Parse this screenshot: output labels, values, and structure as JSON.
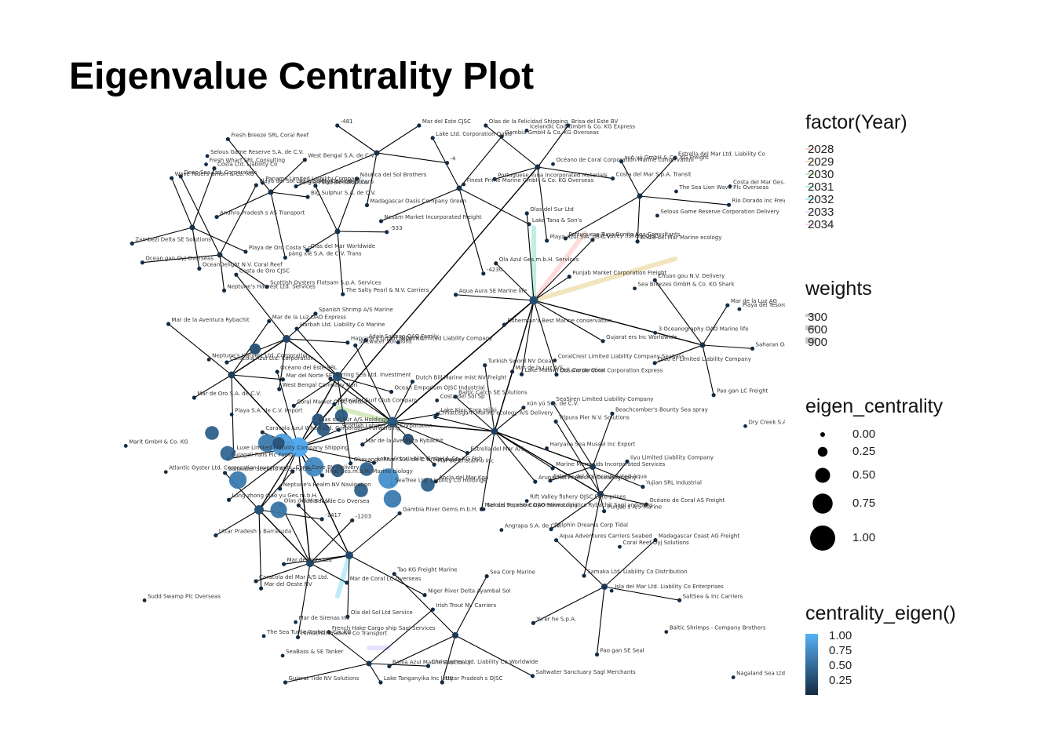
{
  "title": "Eigenvalue Centrality Plot",
  "legend": {
    "year": {
      "title": "factor(Year)",
      "items": [
        {
          "label": "2028",
          "color": "#f8766d"
        },
        {
          "label": "2029",
          "color": "#c49a00"
        },
        {
          "label": "2030",
          "color": "#53b400"
        },
        {
          "label": "2031",
          "color": "#00c094"
        },
        {
          "label": "2032",
          "color": "#00b6eb"
        },
        {
          "label": "2033",
          "color": "#a58aff"
        },
        {
          "label": "2034",
          "color": "#fb61d7"
        }
      ]
    },
    "weights": {
      "title": "weights",
      "items": [
        {
          "label": "300",
          "value": 300
        },
        {
          "label": "600",
          "value": 600
        },
        {
          "label": "900",
          "value": 900
        }
      ]
    },
    "eigen_centrality": {
      "title": "eigen_centrality",
      "items": [
        {
          "label": "0.00",
          "value": 0.0
        },
        {
          "label": "0.25",
          "value": 0.25
        },
        {
          "label": "0.50",
          "value": 0.5
        },
        {
          "label": "0.75",
          "value": 0.75
        },
        {
          "label": "1.00",
          "value": 1.0
        }
      ]
    },
    "centrality_color": {
      "title": "centrality_eigen()",
      "items": [
        {
          "label": "1.00",
          "value": 1.0
        },
        {
          "label": "0.75",
          "value": 0.75
        },
        {
          "label": "0.50",
          "value": 0.5
        },
        {
          "label": "0.25",
          "value": 0.25
        }
      ],
      "low_color": "#132b43",
      "high_color": "#56b1f7"
    }
  },
  "node_labels": [
    "Gujarat ers Inc Worldwide",
    "Océano de Coral Corporation Express",
    "Lake Malawi Ltd. Corporation",
    "Fisherman's Best Marine conservation",
    "Aqua Aura SE Marine life",
    "Ola Azul Ges.m.b.H. Services",
    "Olas del Sur Ltd",
    "Rift Valley fishery OJSC",
    "Punjab Market Corporation Freight",
    "Estrella del Mar A/S",
    "Mar de Cristalino Inc",
    "SeaTree Ltd. Liability Co Holdings",
    "Mar de la Aventura Rybachit",
    "Olas del Sur A/S Holdings",
    "Herring Sea Ltd. Investment",
    "Saltwater Solutions",
    "Dutch Bill Marine mist NV Freight",
    "Lake Kivu Corp Hijiki",
    "Lake Victoria Nile GmbH & Co. KG Fish",
    "Hhot Ges.m.b.H. Marine biology",
    "Neptune's Realm NV Navigation",
    "Long zhong diao yu Ges.m.b.H.",
    "Bujagali Falls Plc Family",
    "Caracola Azul Wharf Ltd. Corporation Forwarding",
    "Océano del Este SRL",
    "Saltwater Surf Club Company",
    "Scottish Lobster Ltd. Corporation",
    "Marine Mermaids Incorporated Services",
    "Arunachal Pradesh s Oceanography",
    "Mar del Paraíso Corporation Logistics Rybachit Sagl and Sons",
    "Ancla del Mar Kga",
    "Chhattisgarh Marine ecology A/S Delivery",
    "Baltic Catch SE Solutions",
    "Turkish Sword NV Ocean",
    "Mar de la Luz A/S",
    "xún yú S.A. de C.V.",
    "Ocean Emporium OJSC Industrial",
    "Okavango River S.A. de C.V. Worldwide",
    "Coral Market OJSC United",
    "Harbah Ltd. Liability Co Marine",
    "Adair Salmon OAO Family",
    "Haryana s GmbH & Co. KG",
    "West Bengal Company Nori",
    "Caracola Azul Ltd. Corporation",
    "Costa de Oro CJSC",
    "Spanish Shrimp A/S Marine",
    "Mar del Norte SE",
    "Luxe Limited Liability Company Shipping",
    "Mar de Oro S.A. de C.V.",
    "Mar de la Aventura Rybachit",
    "Mar de la Luz OAO Express",
    "Niger River Delta Ayambal Sol",
    "Ola del Sol Ltd Service",
    "Mar de Plata Ltd",
    "Goa Seaside Co Oversea",
    "Gambia River Gems.m.b.H. &",
    "Mar de Coral LC Overseas",
    "Himachal Pradesh Co Transport",
    "Caracola del Mar A/S Ltd.",
    "Olas del Mar N.V.",
    "-1203",
    "Yujian SRL Industrial",
    "Punjab s A/S Marine",
    "Estrella del Sol Incorporated Aqua",
    "SeaSiren Limited Liability Company",
    "Beachcomber's Bounty Sea spray",
    "Océano de Coral AS Freight",
    "Samaka Ltd. Liability Co Distribution",
    "Dolphin Dreams Corp Tidal",
    "Tripura Pier N.V. Solutions",
    "Iiyu Limited Liability Company",
    "SaltSea & Inc Carriers",
    "Pao gan SE Seal",
    "Yu er he S.p.A.",
    "Aqua Adventures Carriers Seabed",
    "Madagascar Coast AG Freight",
    "Saharan Oasis Plc International",
    "Pao gan LC Freight",
    "Diao er Limited Liability Company",
    "Chuan gou N.V. Delivery",
    "Mar de la Luz AG",
    "Saltwater Sanctuary Sagl Merchants",
    "Uttar Pradesh s OJSC",
    "Bahia Azul Marine sanctuary",
    "Tao KG Freight Marine",
    "Sea Corp Marine",
    "Big Sulphur S.A. de C.V.",
    "pàng xiè S.A. de C.V. Trans",
    "Andhra Pradesh s AS Transport",
    "Fresh Breeze SRL Coral Reef",
    "West Bengal S.A. de C.V.",
    "Costa del Mar S.p.A. Transit",
    "Playa Azul S.A. de C.V.",
    "Portuguese Tuna Incorporated Materials",
    "Olas de la Felicidad Shipping",
    "Brisa del Este BV",
    "Lake Tana & Son's",
    "-4230",
    "Nesam Market Incorporated Freight",
    "Lake Ltd. Corporation Oasis",
    "Gambia GmbH & Co. KG Overseas",
    "-4",
    "Madagascar Oasis Company Green",
    "Belgian Cod BV Solutions",
    "-481",
    "Mar del Este CJSC",
    "Playa de Oro Costa S.p.",
    "OceanDelight N.V. Coral Reef",
    "Zambezi Delta SE Solutions",
    "Wave Riders GmbH & Co. KG",
    "Costa Ltd. Liability Co",
    "Scottish Oysters Flotsam S.p.A. Services",
    "Neptune's Harvest Ltd. Services",
    "Ocean gan Oyj Overseas",
    "Deep Sea Ltd. Corporation",
    "Playa del Sol Ltd. Liability Co Line",
    "-533",
    "The Salty Pearl & N.V. Carriers",
    "Olas del Mar Worldwide",
    "Playa del Cielo Corp",
    "Náutica del Sol Brothers",
    "Rio Dorado Inc Freight",
    "Ancla del Mar Marine ecology",
    "Portuguese Tuna Bonito Kga Consultants",
    "suō yú GmbH & Co. KG Freight",
    "Estrella del Mar Ltd. Liability Co",
    "Christopher Ltd. Liability Co Worldwide",
    "Lake Tanganyika Inc Jetty",
    "Gujarat Tide NV Solutions",
    "French Hake Cargo ship Sagl Services",
    "Irish Trout NV Carriers",
    "-1417",
    "Mar del Oeste NV",
    "Uttar Pradesh s Barracuda",
    "Saltwater Seekers AB Services",
    "Coral Cove BV Delivery",
    "Panama Limited Liability Company",
    "Marit GmbH & Co. KG",
    "Costa del Mar Ges.m.b.H. Marine biology",
    "Selous Supreme OAO Forwarding",
    "Coral Reef Oyj Solutions",
    "Haryana Sea Mussel Inc Export",
    "Niamh Limited Liability Company",
    "Selous Game Reserve Corporation Delivery",
    "Selous Game Reserve S.A. de C.V.",
    "Playa S.A. de C.V. Import",
    "Finest Prime Marine GmbH & Co. KG Overseas",
    "Isla del Mar Ltd. Liability Co Enterprises",
    "Neptune's Harvest Ltd. Corporation",
    "The Sea Turtle GmbH & Co. KG",
    "Sea Breezes GmbH & Co. KG Shark",
    "CoralCrest Limited Liability Company Seabass",
    "SeaBass & SE Tanker",
    "Angrapa S.A. de C.V.",
    "Sudd Swamp Plc Overseas",
    "Dry Creek S.A. de C.V. Marine",
    "Costa del Sol Sp",
    "Océano de Coral Corporation Marine conservation",
    "Icelandic Cod GmbH & Co. KG Express",
    "Baltic Shrimps - Company Brothers",
    "3 Oceanography OAO Marine life",
    "Rift Valley fishery OJSC Enterprises",
    "Playa del Tesoro OJSC",
    "The Sea Lion Wave Plc Overseas",
    "Mar de Sirenas Inc",
    "Fresh Wharf SRL Consulting",
    "Atlantic Oyster Ltd. Corporation Investment",
    "Nagaland Sea Ltd. Corporation &"
  ]
}
